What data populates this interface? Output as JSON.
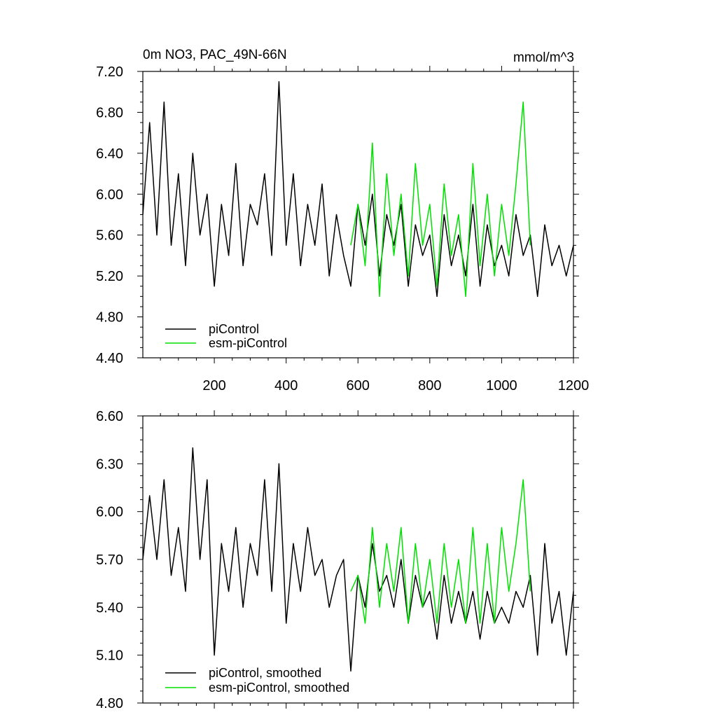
{
  "colors": {
    "piControl": "#000000",
    "esm_piControl": "#00e000"
  },
  "charts": {
    "top": {
      "title": "0m NO3, PAC_49N-66N",
      "units": "mmol/m^3",
      "y_ticks": [
        "4.40",
        "4.80",
        "5.20",
        "5.60",
        "6.00",
        "6.40",
        "6.80",
        "7.20"
      ],
      "x_ticks": [
        "200",
        "400",
        "600",
        "800",
        "1000",
        "1200"
      ],
      "legend": [
        "piControl",
        "esm-piControl"
      ]
    },
    "bottom": {
      "y_ticks": [
        "4.80",
        "5.10",
        "5.40",
        "5.70",
        "6.00",
        "6.30",
        "6.60"
      ],
      "legend": [
        "piControl, smoothed",
        "esm-piControl, smoothed"
      ]
    }
  },
  "chart_data": [
    {
      "type": "line",
      "title": "0m NO3, PAC_49N-66N",
      "units": "mmol/m^3",
      "xlim": [
        1,
        1200
      ],
      "ylim": [
        4.4,
        7.2
      ],
      "x_ticks": [
        200,
        400,
        600,
        800,
        1000,
        1200
      ],
      "y_ticks": [
        4.4,
        4.8,
        5.2,
        5.6,
        6.0,
        6.4,
        6.8,
        7.2
      ],
      "legend_position": "bottom-left",
      "series": [
        {
          "name": "piControl",
          "color": "#000000",
          "x": [
            1,
            20,
            40,
            60,
            80,
            100,
            120,
            140,
            160,
            180,
            200,
            220,
            240,
            260,
            280,
            300,
            320,
            340,
            360,
            380,
            400,
            420,
            440,
            460,
            480,
            500,
            520,
            540,
            560,
            580,
            600,
            620,
            640,
            660,
            680,
            700,
            720,
            740,
            760,
            780,
            800,
            820,
            840,
            860,
            880,
            900,
            920,
            940,
            960,
            980,
            1000,
            1020,
            1040,
            1060,
            1080,
            1100,
            1120,
            1140,
            1160,
            1180,
            1200
          ],
          "y": [
            5.8,
            6.7,
            5.6,
            6.9,
            5.5,
            6.2,
            5.3,
            6.4,
            5.6,
            6.0,
            5.1,
            5.9,
            5.4,
            6.3,
            5.3,
            5.9,
            5.7,
            6.2,
            5.4,
            7.1,
            5.5,
            6.2,
            5.3,
            5.9,
            5.5,
            6.1,
            5.2,
            5.8,
            5.4,
            5.1,
            5.9,
            5.5,
            6.0,
            5.2,
            5.8,
            5.5,
            5.9,
            5.1,
            5.7,
            5.4,
            5.6,
            5.0,
            5.8,
            5.3,
            5.6,
            5.2,
            5.9,
            5.1,
            5.7,
            5.3,
            5.5,
            5.2,
            5.8,
            5.4,
            5.6,
            5.0,
            5.7,
            5.3,
            5.5,
            5.2,
            5.5
          ]
        },
        {
          "name": "esm-piControl",
          "color": "#00e000",
          "x": [
            580,
            600,
            620,
            640,
            660,
            680,
            700,
            720,
            740,
            760,
            780,
            800,
            820,
            840,
            860,
            880,
            900,
            920,
            940,
            960,
            980,
            1000,
            1020,
            1040,
            1060,
            1080
          ],
          "y": [
            5.5,
            5.9,
            5.3,
            6.5,
            5.0,
            6.2,
            5.4,
            6.0,
            5.2,
            6.3,
            5.5,
            5.9,
            5.1,
            6.1,
            5.4,
            5.8,
            5.0,
            6.3,
            5.3,
            6.0,
            5.2,
            5.9,
            5.4,
            6.1,
            6.9,
            5.5
          ]
        }
      ]
    },
    {
      "type": "line",
      "xlim": [
        1,
        1200
      ],
      "ylim": [
        4.8,
        6.6
      ],
      "y_ticks": [
        4.8,
        5.1,
        5.4,
        5.7,
        6.0,
        6.3,
        6.6
      ],
      "legend_position": "bottom-left",
      "series": [
        {
          "name": "piControl, smoothed",
          "color": "#000000",
          "x": [
            1,
            20,
            40,
            60,
            80,
            100,
            120,
            140,
            160,
            180,
            200,
            220,
            240,
            260,
            280,
            300,
            320,
            340,
            360,
            380,
            400,
            420,
            440,
            460,
            480,
            500,
            520,
            540,
            560,
            580,
            600,
            620,
            640,
            660,
            680,
            700,
            720,
            740,
            760,
            780,
            800,
            820,
            840,
            860,
            880,
            900,
            920,
            940,
            960,
            980,
            1000,
            1020,
            1040,
            1060,
            1080,
            1100,
            1120,
            1140,
            1160,
            1180,
            1200
          ],
          "y": [
            5.7,
            6.1,
            5.7,
            6.2,
            5.6,
            5.9,
            5.5,
            6.4,
            5.7,
            6.2,
            5.1,
            5.8,
            5.5,
            5.9,
            5.4,
            5.8,
            5.6,
            6.2,
            5.5,
            6.3,
            5.3,
            5.8,
            5.5,
            5.9,
            5.6,
            5.7,
            5.4,
            5.6,
            5.7,
            5.0,
            5.6,
            5.4,
            5.8,
            5.5,
            5.6,
            5.4,
            5.7,
            5.3,
            5.6,
            5.4,
            5.5,
            5.2,
            5.6,
            5.3,
            5.5,
            5.3,
            5.5,
            5.2,
            5.5,
            5.3,
            5.4,
            5.3,
            5.5,
            5.4,
            5.6,
            5.1,
            5.8,
            5.3,
            5.5,
            5.1,
            5.5
          ]
        },
        {
          "name": "esm-piControl, smoothed",
          "color": "#00e000",
          "x": [
            580,
            600,
            620,
            640,
            660,
            680,
            700,
            720,
            740,
            760,
            780,
            800,
            820,
            840,
            860,
            880,
            900,
            920,
            940,
            960,
            980,
            1000,
            1020,
            1040,
            1060,
            1080
          ],
          "y": [
            5.5,
            5.6,
            5.3,
            5.9,
            5.4,
            5.8,
            5.5,
            5.9,
            5.3,
            5.8,
            5.4,
            5.7,
            5.3,
            5.8,
            5.4,
            5.7,
            5.3,
            5.9,
            5.3,
            5.8,
            5.3,
            5.9,
            5.5,
            5.8,
            6.2,
            5.5
          ]
        }
      ]
    }
  ]
}
